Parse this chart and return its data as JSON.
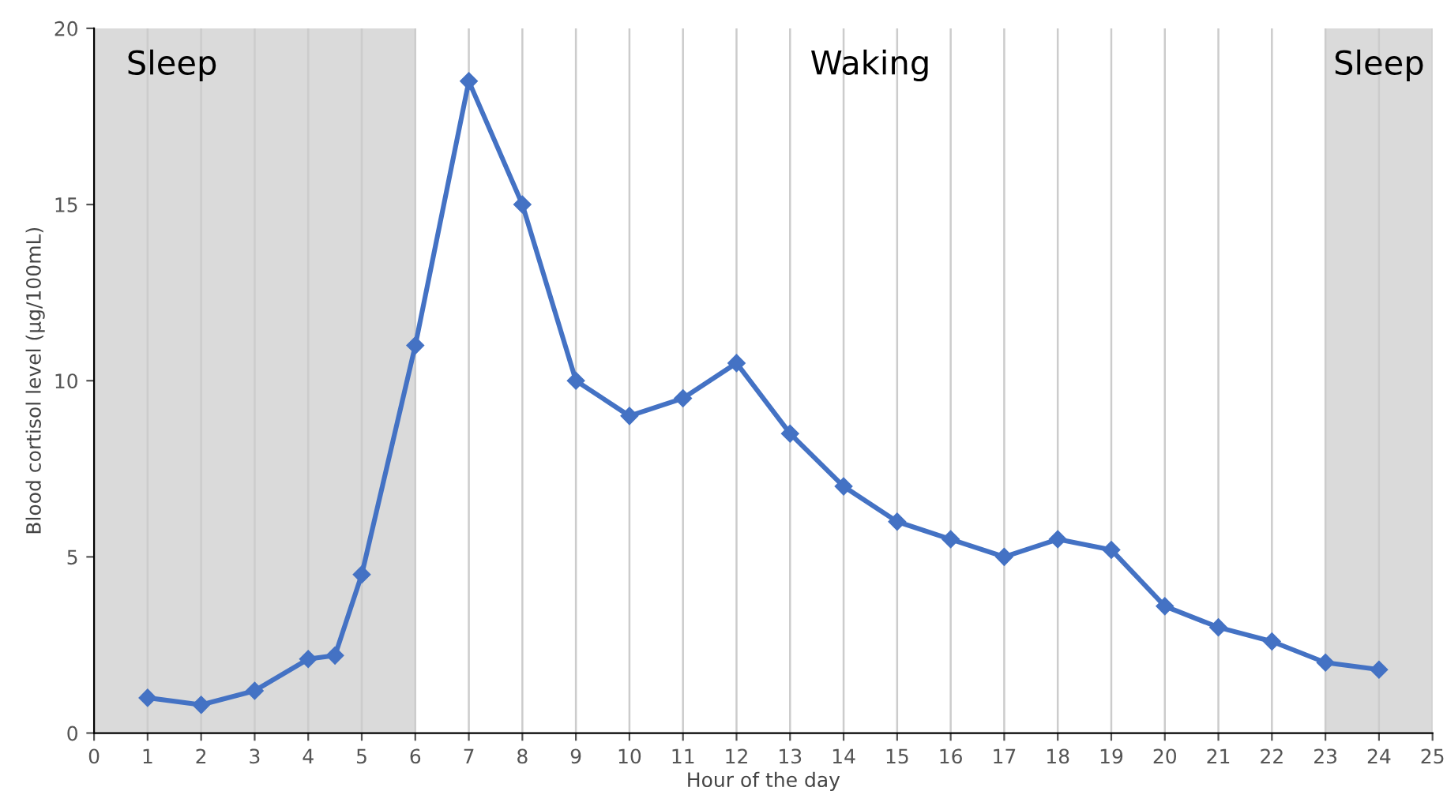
{
  "chart_data": {
    "type": "line",
    "xlabel": "Hour of the day",
    "ylabel": "Blood cortisol level (µg/100mL)",
    "x": [
      1,
      2,
      3,
      4,
      4.5,
      5,
      6,
      7,
      8,
      9,
      10,
      11,
      12,
      13,
      14,
      15,
      16,
      17,
      18,
      19,
      20,
      21,
      22,
      23,
      24
    ],
    "series": [
      {
        "color": "#4472c4",
        "values": [
          1.0,
          0.8,
          1.2,
          2.1,
          2.2,
          4.5,
          11,
          18.5,
          15,
          10,
          9,
          9.5,
          10.5,
          8.5,
          7,
          6,
          5.5,
          5,
          5.5,
          5.2,
          3.6,
          3,
          2.6,
          2,
          1.8
        ]
      }
    ],
    "xlim": [
      0,
      25
    ],
    "xticks": [
      0,
      1,
      2,
      3,
      4,
      5,
      6,
      7,
      8,
      9,
      10,
      11,
      12,
      13,
      14,
      15,
      16,
      17,
      18,
      19,
      20,
      21,
      22,
      23,
      24,
      25
    ],
    "ylim": [
      0,
      20
    ],
    "yticks": [
      0,
      5,
      10,
      15,
      20
    ],
    "bands": [
      {
        "axis": "x",
        "from": 0,
        "to": 6,
        "label": "Sleep",
        "color": "#dadada"
      },
      {
        "axis": "x",
        "from": 23,
        "to": 25,
        "label": "Sleep",
        "color": "#dadada"
      }
    ],
    "annotations": [
      "Waking"
    ],
    "grid": "x",
    "marker": "diamond",
    "line_style": "solid",
    "legend": false
  }
}
